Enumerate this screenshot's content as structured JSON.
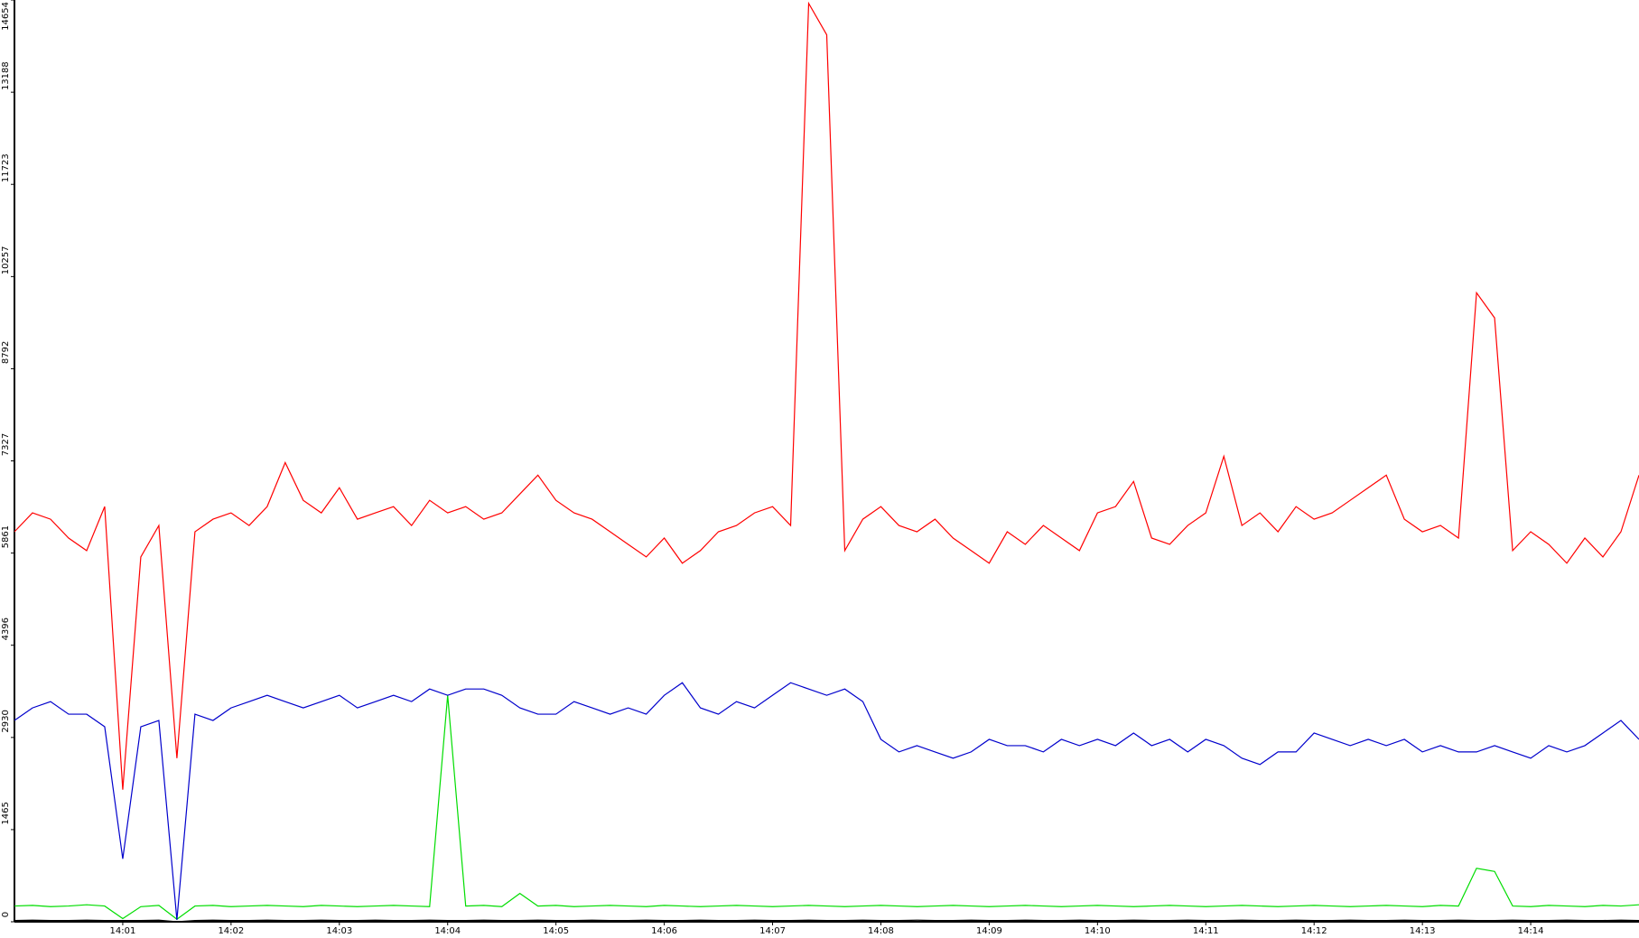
{
  "chart_data": {
    "type": "line",
    "categories": [
      null,
      null,
      null,
      null,
      null,
      null,
      "14:01",
      null,
      null,
      null,
      null,
      null,
      "14:02",
      null,
      null,
      null,
      null,
      null,
      "14:03",
      null,
      null,
      null,
      null,
      null,
      "14:04",
      null,
      null,
      null,
      null,
      null,
      "14:05",
      null,
      null,
      null,
      null,
      null,
      "14:06",
      null,
      null,
      null,
      null,
      null,
      "14:07",
      null,
      null,
      null,
      null,
      null,
      "14:08",
      null,
      null,
      null,
      null,
      null,
      "14:09",
      null,
      null,
      null,
      null,
      null,
      "14:10",
      null,
      null,
      null,
      null,
      null,
      "14:11",
      null,
      null,
      null,
      null,
      null,
      "14:12",
      null,
      null,
      null,
      null,
      null,
      "14:13",
      null,
      null,
      null,
      null,
      null,
      "14:14",
      null,
      null,
      null,
      null,
      null,
      null
    ],
    "series": [
      {
        "color": "#ff0000",
        "values": [
          6200,
          6500,
          6400,
          6100,
          5900,
          6600,
          2100,
          5800,
          6300,
          2600,
          6200,
          6400,
          6500,
          6300,
          6600,
          7300,
          6700,
          6500,
          6900,
          6400,
          6500,
          6600,
          6300,
          6700,
          6500,
          6600,
          6400,
          6500,
          6800,
          7100,
          6700,
          6500,
          6400,
          6200,
          6000,
          5800,
          6100,
          5700,
          5900,
          6200,
          6300,
          6500,
          6600,
          6300,
          14600,
          14100,
          5900,
          6400,
          6600,
          6300,
          6200,
          6400,
          6100,
          5900,
          5700,
          6200,
          6000,
          6300,
          6100,
          5900,
          6500,
          6600,
          7000,
          6100,
          6000,
          6300,
          6500,
          7400,
          6300,
          6500,
          6200,
          6600,
          6400,
          6500,
          6700,
          6900,
          7100,
          6400,
          6200,
          6300,
          6100,
          10000,
          9600,
          5900,
          6200,
          6000,
          5700,
          6100,
          5800,
          6200,
          7100
        ]
      },
      {
        "color": "#0000cc",
        "values": [
          3200,
          3400,
          3500,
          3300,
          3300,
          3100,
          1000,
          3100,
          3200,
          30,
          3300,
          3200,
          3400,
          3500,
          3600,
          3500,
          3400,
          3500,
          3600,
          3400,
          3500,
          3600,
          3500,
          3700,
          3600,
          3700,
          3700,
          3600,
          3400,
          3300,
          3300,
          3500,
          3400,
          3300,
          3400,
          3300,
          3600,
          3800,
          3400,
          3300,
          3500,
          3400,
          3600,
          3800,
          3700,
          3600,
          3700,
          3500,
          2900,
          2700,
          2800,
          2700,
          2600,
          2700,
          2900,
          2800,
          2800,
          2700,
          2900,
          2800,
          2900,
          2800,
          3000,
          2800,
          2900,
          2700,
          2900,
          2800,
          2600,
          2500,
          2700,
          2700,
          3000,
          2900,
          2800,
          2900,
          2800,
          2900,
          2700,
          2800,
          2700,
          2700,
          2800,
          2700,
          2600,
          2800,
          2700,
          2800,
          3000,
          3200,
          2900
        ]
      },
      {
        "color": "#00dd00",
        "values": [
          250,
          260,
          240,
          250,
          270,
          250,
          50,
          240,
          260,
          40,
          250,
          260,
          240,
          250,
          260,
          250,
          240,
          260,
          250,
          240,
          250,
          260,
          250,
          240,
          3600,
          250,
          260,
          240,
          450,
          250,
          260,
          240,
          250,
          260,
          250,
          240,
          260,
          250,
          240,
          250,
          260,
          250,
          240,
          250,
          260,
          250,
          240,
          250,
          260,
          250,
          240,
          250,
          260,
          250,
          240,
          250,
          260,
          250,
          240,
          250,
          260,
          250,
          240,
          250,
          260,
          250,
          240,
          250,
          260,
          250,
          240,
          250,
          260,
          250,
          240,
          250,
          260,
          250,
          240,
          260,
          250,
          850,
          800,
          250,
          240,
          260,
          250,
          240,
          260,
          250,
          270
        ]
      },
      {
        "color": "#000000",
        "values": [
          20,
          25,
          20,
          20,
          25,
          20,
          20,
          20,
          25,
          0,
          20,
          25,
          20,
          20,
          25,
          20,
          20,
          25,
          20,
          20,
          25,
          20,
          20,
          25,
          20,
          20,
          25,
          20,
          20,
          25,
          20,
          20,
          25,
          20,
          20,
          25,
          20,
          20,
          25,
          20,
          20,
          25,
          20,
          20,
          25,
          20,
          20,
          25,
          20,
          20,
          25,
          20,
          20,
          25,
          20,
          20,
          25,
          20,
          20,
          25,
          20,
          20,
          25,
          20,
          20,
          25,
          20,
          20,
          25,
          20,
          20,
          25,
          20,
          20,
          25,
          20,
          20,
          25,
          20,
          20,
          25,
          20,
          20,
          25,
          20,
          20,
          25,
          20,
          20,
          25,
          20
        ]
      }
    ],
    "ylim": [
      0,
      14654
    ],
    "yticks": [
      0,
      1465,
      2930,
      4396,
      5861,
      7327,
      8792,
      10257,
      11723,
      13188,
      14654
    ]
  }
}
